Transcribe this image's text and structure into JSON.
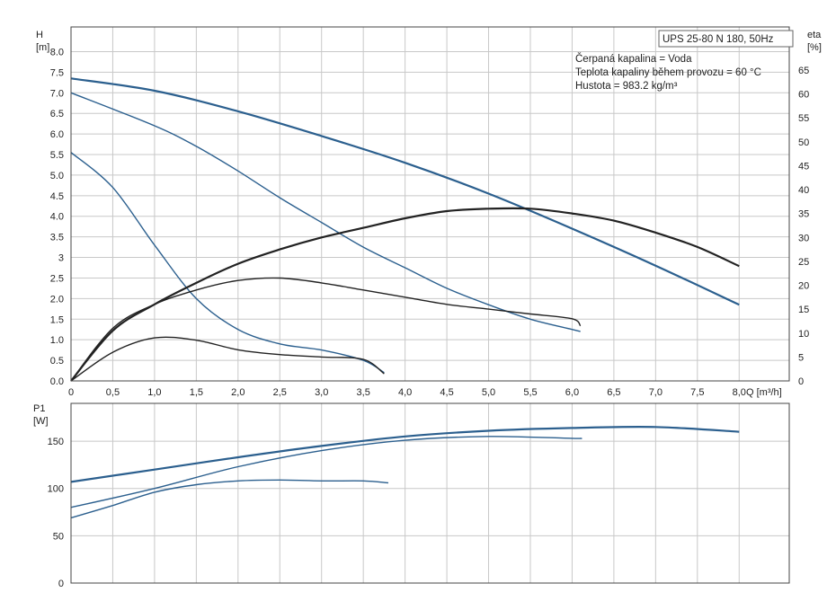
{
  "colors": {
    "head_curve": "#2b5f8e",
    "efficiency_curve": "#222222",
    "power_curve": "#2b5f8e",
    "grid": "#c8c8c8",
    "frame": "#444444"
  },
  "chart_data": [
    {
      "type": "line",
      "title": "UPS 25-80 N 180, 50Hz",
      "annotations": [
        "Čerpaná kapalina = Voda",
        "Teplota kapaliny během provozu = 60 °C",
        "Hustota = 983.2 kg/m³"
      ],
      "xlabel": "Q [m³/h]",
      "ylabel": "H",
      "ylabel_unit": "[m]",
      "y2label": "eta",
      "y2label_unit": "[%]",
      "xlim": [
        0,
        8.6
      ],
      "ylim": [
        0,
        8.6
      ],
      "y2lim": [
        0,
        74
      ],
      "grid": true,
      "x_ticks": [
        0,
        0.5,
        1,
        1.5,
        2,
        2.5,
        3,
        3.5,
        4,
        4.5,
        5,
        5.5,
        6,
        6.5,
        7,
        7.5,
        8
      ],
      "x_tick_labels": [
        "0",
        "0,5",
        "1,0",
        "1,5",
        "2,0",
        "2,5",
        "3,0",
        "3,5",
        "4,0",
        "4,5",
        "5,0",
        "5,5",
        "6,0",
        "6,5",
        "7,0",
        "7,5",
        "8,0"
      ],
      "y_ticks": [
        0,
        0.5,
        1,
        1.5,
        2,
        2.5,
        3,
        3.5,
        4,
        4.5,
        5,
        5.5,
        6,
        6.5,
        7,
        7.5,
        8
      ],
      "y_tick_labels": [
        "0.0",
        "0.5",
        "1.0",
        "1.5",
        "2.0",
        "2.5",
        "3",
        "3.5",
        "4.0",
        "4.5",
        "5.0",
        "5.5",
        "6.0",
        "6.5",
        "7.0",
        "7.5",
        "8.0"
      ],
      "y2_ticks": [
        0,
        5,
        10,
        15,
        20,
        25,
        30,
        35,
        40,
        45,
        50,
        55,
        60,
        65
      ],
      "y2_tick_labels": [
        "0",
        "5",
        "10",
        "15",
        "20",
        "25",
        "30",
        "35",
        "40",
        "45",
        "50",
        "55",
        "60",
        "65"
      ],
      "series": [
        {
          "axis": "y",
          "kind": "head",
          "width": 2.2,
          "x": [
            0,
            1,
            2,
            3,
            4,
            5,
            6,
            7,
            8
          ],
          "y": [
            7.35,
            7.05,
            6.55,
            5.95,
            5.3,
            4.55,
            3.7,
            2.8,
            1.85
          ]
        },
        {
          "axis": "y",
          "kind": "head",
          "width": 1.4,
          "x": [
            0,
            1,
            1.5,
            2,
            2.5,
            3,
            3.5,
            4,
            4.5,
            5,
            5.5,
            6,
            6.1
          ],
          "y": [
            7.0,
            6.2,
            5.7,
            5.1,
            4.45,
            3.85,
            3.25,
            2.75,
            2.25,
            1.85,
            1.5,
            1.25,
            1.2
          ]
        },
        {
          "axis": "y",
          "kind": "head",
          "width": 1.4,
          "x": [
            0,
            0.5,
            1,
            1.5,
            2,
            2.5,
            3,
            3.5,
            3.75
          ],
          "y": [
            5.55,
            4.7,
            3.3,
            2.0,
            1.25,
            0.9,
            0.75,
            0.5,
            0.2
          ]
        },
        {
          "axis": "y2",
          "kind": "eta",
          "width": 2.2,
          "x": [
            0,
            0.5,
            1,
            1.5,
            2,
            2.5,
            3,
            3.5,
            4,
            4.5,
            5,
            5.5,
            6,
            6.5,
            7,
            7.5,
            8
          ],
          "y": [
            0,
            10.5,
            16,
            20.5,
            24.5,
            27.5,
            30,
            32,
            34,
            35.5,
            36,
            36,
            35,
            33.5,
            31,
            28,
            24
          ]
        },
        {
          "axis": "y2",
          "kind": "eta",
          "width": 1.4,
          "x": [
            0,
            0.5,
            1,
            1.5,
            2,
            2.5,
            3,
            3.5,
            4,
            4.5,
            5,
            5.5,
            6,
            6.1
          ],
          "y": [
            0,
            11,
            16,
            19,
            21,
            21.5,
            20.5,
            19,
            17.5,
            16,
            15,
            14,
            13,
            11.5
          ]
        },
        {
          "axis": "y2",
          "kind": "eta",
          "width": 1.4,
          "x": [
            0,
            0.5,
            1,
            1.5,
            2,
            2.5,
            3,
            3.5,
            3.75
          ],
          "y": [
            0,
            6,
            9,
            8.5,
            6.5,
            5.5,
            5,
            4.5,
            1.5
          ]
        }
      ]
    },
    {
      "type": "line",
      "ylabel": "P1",
      "ylabel_unit": "[W]",
      "xlim": [
        0,
        8.6
      ],
      "ylim": [
        0,
        190
      ],
      "grid": true,
      "x_ticks": [
        0,
        0.5,
        1,
        1.5,
        2,
        2.5,
        3,
        3.5,
        4,
        4.5,
        5,
        5.5,
        6,
        6.5,
        7,
        7.5,
        8
      ],
      "y_ticks": [
        0,
        50,
        100,
        150
      ],
      "y_tick_labels": [
        "0",
        "50",
        "100",
        "150"
      ],
      "series": [
        {
          "kind": "power",
          "width": 2.2,
          "x": [
            0,
            1,
            2,
            3,
            4,
            5,
            6,
            7,
            8
          ],
          "y": [
            107,
            120,
            133,
            145,
            155,
            161,
            164,
            165,
            160
          ]
        },
        {
          "kind": "power",
          "width": 1.4,
          "x": [
            0,
            1,
            2,
            3,
            4,
            5,
            6,
            6.1
          ],
          "y": [
            80,
            100,
            123,
            140,
            151,
            155,
            153,
            153
          ]
        },
        {
          "kind": "power",
          "width": 1.4,
          "x": [
            0,
            0.5,
            1,
            1.5,
            2,
            2.5,
            3,
            3.5,
            3.8
          ],
          "y": [
            69,
            82,
            96,
            104,
            108,
            109,
            108,
            108,
            106
          ]
        }
      ]
    }
  ]
}
